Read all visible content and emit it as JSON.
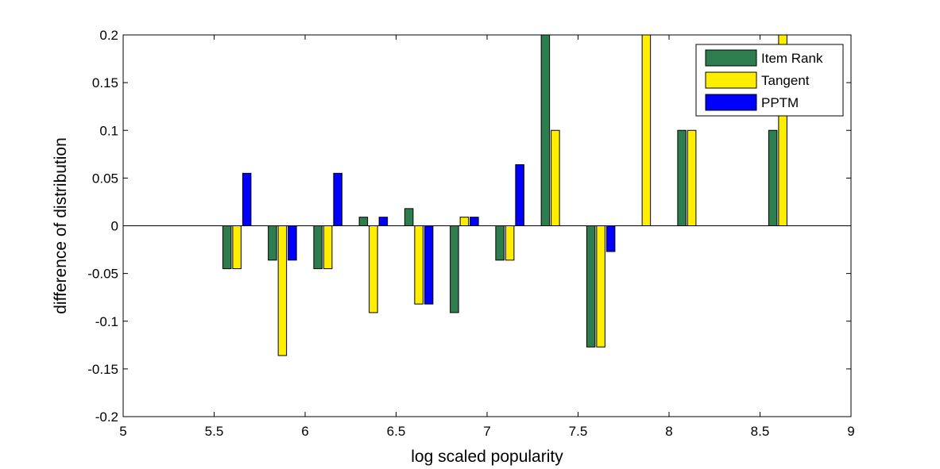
{
  "chart_data": {
    "type": "bar",
    "title": "",
    "xlabel": "log scaled popularity",
    "ylabel": "difference of distribution",
    "xlim": [
      5,
      9
    ],
    "ylim": [
      -0.2,
      0.2
    ],
    "x_ticks": [
      "5",
      "5.5",
      "6",
      "6.5",
      "7",
      "7.5",
      "8",
      "8.5",
      "9"
    ],
    "y_ticks": [
      "-0.2",
      "-0.15",
      "-0.1",
      "-0.05",
      "0",
      "0.05",
      "0.1",
      "0.15",
      "0.2"
    ],
    "grid": false,
    "legend_position": "top-right",
    "x": [
      5.625,
      5.875,
      6.125,
      6.375,
      6.625,
      6.875,
      7.125,
      7.375,
      7.625,
      7.875,
      8.125,
      8.625
    ],
    "series": [
      {
        "name": "Item Rank",
        "color": "#2e7d4f",
        "values": [
          -0.045,
          -0.036,
          -0.045,
          0.009,
          0.018,
          -0.091,
          -0.036,
          0.2,
          -0.127,
          0,
          0.1,
          0.1
        ]
      },
      {
        "name": "Tangent",
        "color": "#ffee00",
        "values": [
          -0.045,
          -0.136,
          -0.045,
          -0.091,
          -0.082,
          0.009,
          -0.036,
          0.1,
          -0.127,
          0.2,
          0.1,
          0.2
        ]
      },
      {
        "name": "PPTM",
        "color": "#0000ff",
        "values": [
          0.055,
          -0.036,
          0.055,
          0.009,
          -0.082,
          0.009,
          0.064,
          0,
          -0.027,
          0,
          0,
          0
        ]
      }
    ]
  }
}
